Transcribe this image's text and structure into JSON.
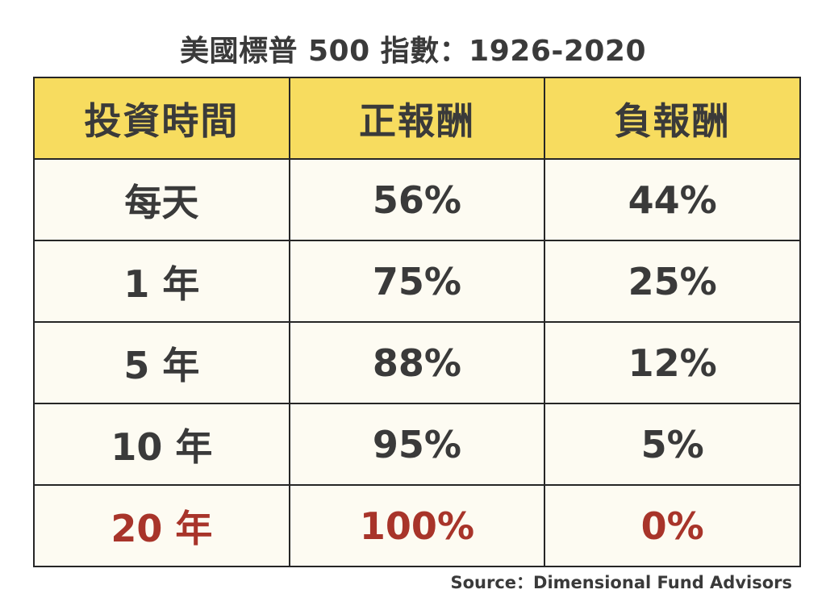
{
  "title": "美國標普 500 指數：1926-2020",
  "source": "Source：Dimensional Fund Advisors",
  "colors": {
    "header_bg": "#f7dc5f",
    "cell_bg": "#fdfbf2",
    "text": "#3a3a3a",
    "highlight_text": "#a8342a",
    "border": "#262626"
  },
  "chart_data": {
    "type": "table",
    "title": "美國標普 500 指數：1926-2020",
    "columns": [
      "投資時間",
      "正報酬",
      "負報酬"
    ],
    "rows": [
      [
        "每天",
        "56%",
        "44%"
      ],
      [
        "1 年",
        "75%",
        "25%"
      ],
      [
        "5 年",
        "88%",
        "12%"
      ],
      [
        "10 年",
        "95%",
        "5%"
      ],
      [
        "20 年",
        "100%",
        "0%"
      ]
    ],
    "highlighted_row": 4
  }
}
